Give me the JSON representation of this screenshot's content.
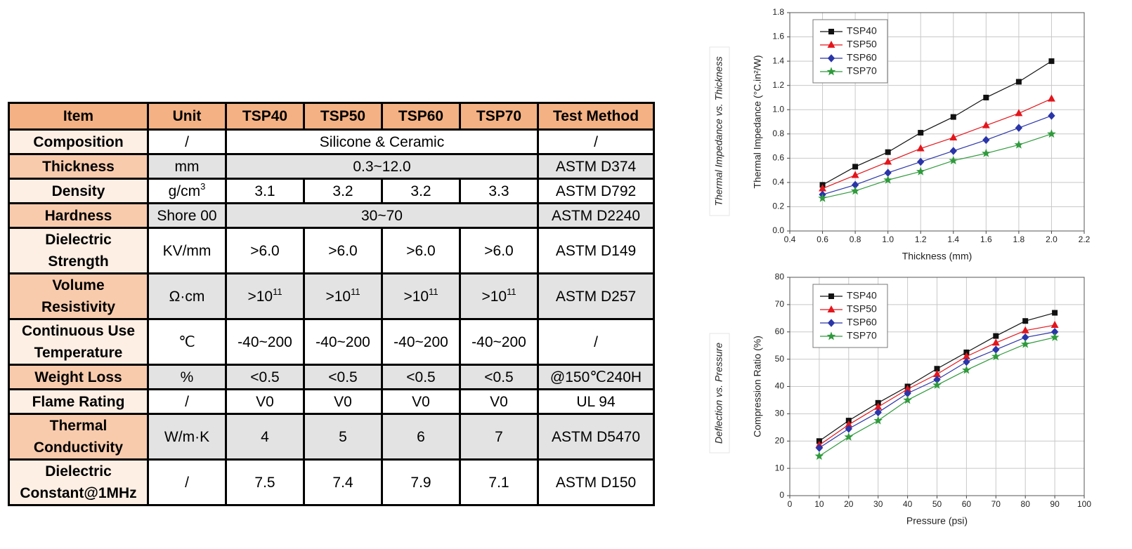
{
  "table": {
    "header": [
      "Item",
      "Unit",
      "TSP40",
      "TSP50",
      "TSP60",
      "TSP70",
      "Test Method"
    ],
    "rows": [
      [
        "Composition",
        "/",
        "Silicone & Ceramic",
        "/"
      ],
      [
        "Thickness",
        "mm",
        "0.3~12.0",
        "ASTM D374"
      ],
      [
        "Density",
        {
          "text": "g/cm",
          "sup": "3"
        },
        "3.1",
        "3.2",
        "3.2",
        "3.3",
        "ASTM D792"
      ],
      [
        "Hardness",
        "Shore 00",
        "30~70",
        "ASTM D2240"
      ],
      [
        "Dielectric\nStrength",
        "KV/mm",
        ">6.0",
        ">6.0",
        ">6.0",
        ">6.0",
        "ASTM D149"
      ],
      [
        "Volume\nResistivity",
        "Ω·cm",
        {
          "text": ">10",
          "sup": "11"
        },
        {
          "text": ">10",
          "sup": "11"
        },
        {
          "text": ">10",
          "sup": "11"
        },
        {
          "text": ">10",
          "sup": "11"
        },
        "ASTM D257"
      ],
      [
        "Continuous Use\nTemperature",
        "℃",
        "-40~200",
        "-40~200",
        "-40~200",
        "-40~200",
        "/"
      ],
      [
        "Weight Loss",
        "%",
        "<0.5",
        "<0.5",
        "<0.5",
        "<0.5",
        "@150℃240H"
      ],
      [
        "Flame Rating",
        "/",
        "V0",
        "V0",
        "V0",
        "V0",
        "UL 94"
      ],
      [
        "Thermal\nConductivity",
        "W/m·K",
        "4",
        "5",
        "6",
        "7",
        "ASTM D5470"
      ],
      [
        "Dielectric\nConstant@1MHz",
        "/",
        "7.5",
        "7.4",
        "7.9",
        "7.1",
        "ASTM D150"
      ]
    ]
  },
  "chart_data": [
    {
      "type": "line",
      "title": "Thermal Impedance vs. Thickness",
      "x_label": "Thickness (mm)",
      "y_label": "Thermal Impedance (°C.in²/W)",
      "x": [
        0.6,
        0.8,
        1.0,
        1.2,
        1.4,
        1.6,
        1.8,
        2.0
      ],
      "xlim": [
        0.4,
        2.2
      ],
      "xticks": [
        0.4,
        0.6,
        0.8,
        {
          "value": 1.0,
          "label": "1.0"
        },
        1.2,
        1.4,
        1.6,
        1.8,
        {
          "value": 2.0,
          "label": "2.0"
        },
        2.2
      ],
      "ylim": [
        0,
        1.8
      ],
      "yticks": [
        {
          "value": 0,
          "label": "0.0"
        },
        0.2,
        0.4,
        0.6,
        0.8,
        {
          "value": 1.0,
          "label": "1.0"
        },
        1.2,
        1.4,
        1.6,
        1.8
      ],
      "grid": true,
      "legend": "upper left",
      "series": [
        {
          "name": "TSP40",
          "color": "#111111",
          "marker": "square",
          "values": [
            0.38,
            0.53,
            0.65,
            0.81,
            0.94,
            1.1,
            1.23,
            1.4
          ]
        },
        {
          "name": "TSP50",
          "color": "#e3161c",
          "marker": "triangle",
          "values": [
            0.35,
            0.46,
            0.57,
            0.68,
            0.77,
            0.87,
            0.97,
            1.09
          ]
        },
        {
          "name": "TSP60",
          "color": "#2a35a8",
          "marker": "diamond",
          "values": [
            0.3,
            0.38,
            0.48,
            0.57,
            0.66,
            0.75,
            0.85,
            0.95
          ]
        },
        {
          "name": "TSP70",
          "color": "#2f9a3c",
          "marker": "star",
          "values": [
            0.27,
            0.33,
            0.42,
            0.49,
            0.58,
            0.64,
            0.71,
            0.8
          ]
        }
      ]
    },
    {
      "type": "line",
      "title": "Deflection vs. Pressure",
      "x_label": "Pressure (psi)",
      "y_label": "Compression Ratio (%)",
      "x": [
        10,
        20,
        30,
        40,
        50,
        60,
        70,
        80,
        90
      ],
      "xlim": [
        0,
        100
      ],
      "xticks": [
        0,
        10,
        20,
        30,
        40,
        50,
        60,
        70,
        80,
        90,
        100
      ],
      "ylim": [
        0,
        80
      ],
      "yticks": [
        0,
        10,
        20,
        30,
        40,
        50,
        60,
        70,
        80
      ],
      "grid": true,
      "legend": "upper left",
      "series": [
        {
          "name": "TSP40",
          "color": "#111111",
          "marker": "square",
          "values": [
            20,
            27.5,
            34,
            40,
            46.5,
            52.5,
            58.5,
            64,
            67
          ]
        },
        {
          "name": "TSP50",
          "color": "#e3161c",
          "marker": "triangle",
          "values": [
            18.5,
            26,
            32.5,
            39,
            44.5,
            51,
            56,
            60.5,
            62.5
          ]
        },
        {
          "name": "TSP60",
          "color": "#2a35a8",
          "marker": "diamond",
          "values": [
            17.5,
            24.5,
            30.5,
            37.5,
            42.5,
            49,
            53.5,
            58,
            60
          ]
        },
        {
          "name": "TSP70",
          "color": "#2f9a3c",
          "marker": "star",
          "values": [
            14.5,
            21.5,
            27.5,
            35,
            40.5,
            46,
            51,
            55.5,
            58
          ]
        }
      ]
    }
  ]
}
